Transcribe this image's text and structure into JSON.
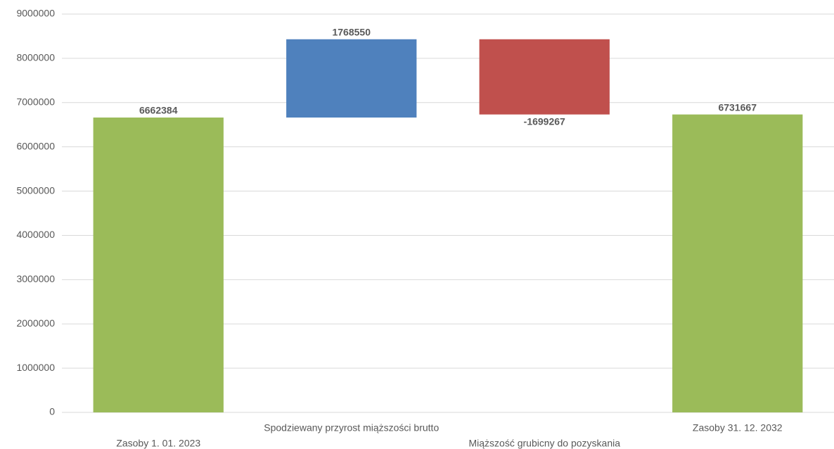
{
  "chart_data": {
    "type": "waterfall",
    "categories": [
      "Zasoby 1. 01. 2023",
      "Spodziewany przyrost miąższości brutto",
      "Miąższość grubicny do pozyskania",
      "Zasoby 31. 12. 2032"
    ],
    "values": [
      6662384,
      1768550,
      -1699267,
      6731667
    ],
    "totals": [
      true,
      false,
      false,
      true
    ],
    "colors": [
      "#9bbb59",
      "#4f81bd",
      "#c0504d",
      "#9bbb59"
    ],
    "ylim": [
      0,
      9000000
    ],
    "yticks": [
      0,
      1000000,
      2000000,
      3000000,
      4000000,
      5000000,
      6000000,
      7000000,
      8000000,
      9000000
    ],
    "grid": true
  }
}
